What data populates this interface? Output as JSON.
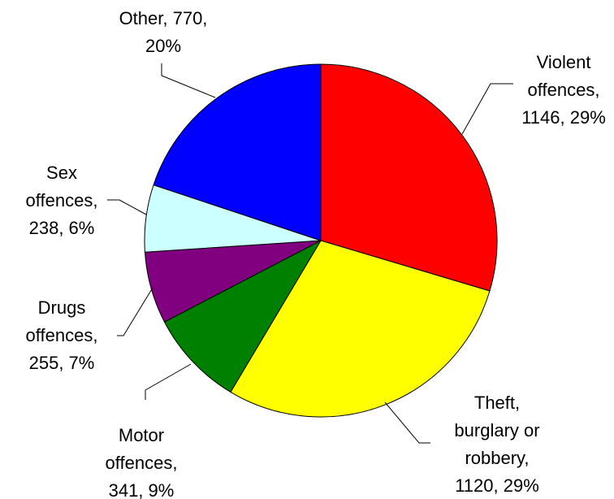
{
  "chart_data": {
    "type": "pie",
    "title": "",
    "start_angle_deg": 0,
    "direction": "clockwise",
    "slices": [
      {
        "category": "Violent offences",
        "value": 1146,
        "percent": "29%",
        "color": "#ff0000",
        "label_lines": [
          "Violent",
          "offences,",
          "1146, 29%"
        ]
      },
      {
        "category": "Theft, burglary or robbery",
        "value": 1120,
        "percent": "29%",
        "color": "#ffff00",
        "label_lines": [
          "Theft,",
          "burglary or",
          "robbery,",
          "1120, 29%"
        ]
      },
      {
        "category": "Motor offences",
        "value": 341,
        "percent": "9%",
        "color": "#008000",
        "label_lines": [
          "Motor",
          "offences,",
          "341, 9%"
        ]
      },
      {
        "category": "Drugs offences",
        "value": 255,
        "percent": "7%",
        "color": "#800080",
        "label_lines": [
          "Drugs",
          "offences,",
          "255, 7%"
        ]
      },
      {
        "category": "Sex offences",
        "value": 238,
        "percent": "6%",
        "color": "#ccffff",
        "label_lines": [
          "Sex",
          "offences,",
          "238, 6%"
        ]
      },
      {
        "category": "Other",
        "value": 770,
        "percent": "20%",
        "color": "#0000ff",
        "label_lines": [
          "Other, 770,",
          "20%"
        ]
      }
    ]
  }
}
